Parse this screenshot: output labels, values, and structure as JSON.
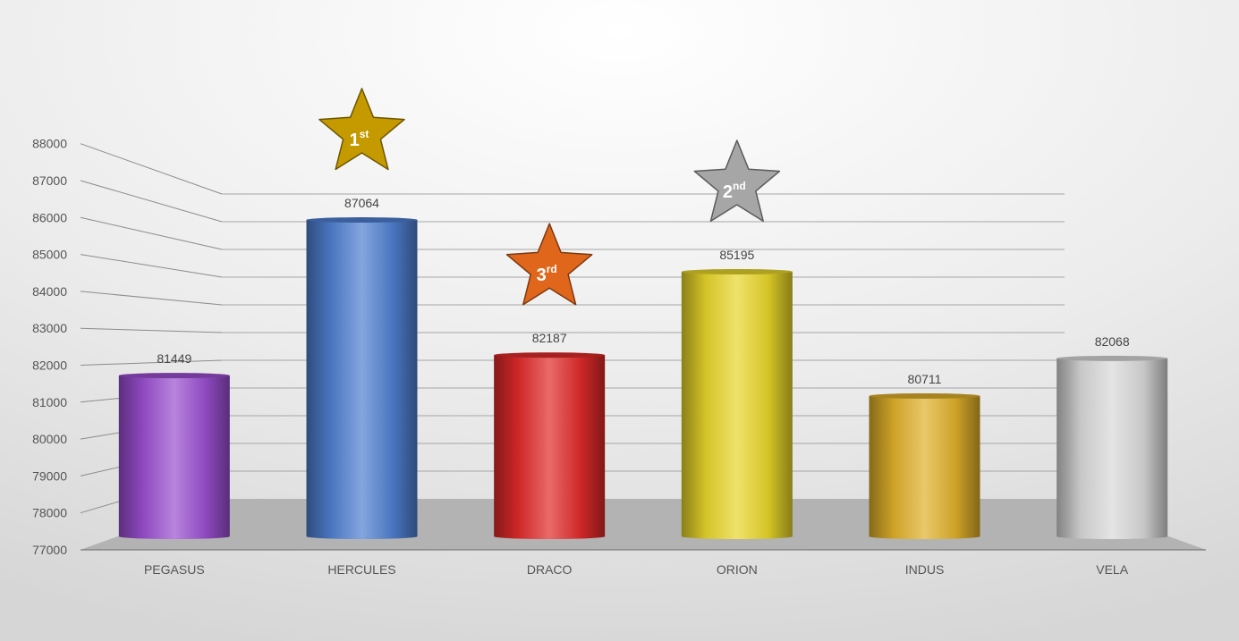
{
  "chart_data": {
    "type": "bar",
    "style": "3d-cylinder",
    "categories": [
      "PEGASUS",
      "HERCULES",
      "DRACO",
      "ORION",
      "INDUS",
      "VELA"
    ],
    "values": [
      81449,
      87064,
      82187,
      85195,
      80711,
      82068
    ],
    "ylim": [
      77000,
      88000
    ],
    "yticks": [
      "77000",
      "78000",
      "79000",
      "80000",
      "81000",
      "82000",
      "83000",
      "84000",
      "85000",
      "86000",
      "87000",
      "88000"
    ],
    "grid": true,
    "legend": "none",
    "bar_colors": [
      "#9a4fd0",
      "#4f7fd0",
      "#e02a2a",
      "#e8d52a",
      "#e0b02a",
      "#d9d9d9"
    ],
    "badges": [
      {
        "category": "HERCULES",
        "rank": "1",
        "suffix": "st",
        "color": "#c49a00"
      },
      {
        "category": "ORION",
        "rank": "2",
        "suffix": "nd",
        "color": "#a6a6a6"
      },
      {
        "category": "DRACO",
        "rank": "3",
        "suffix": "rd",
        "color": "#e0661c"
      }
    ]
  }
}
